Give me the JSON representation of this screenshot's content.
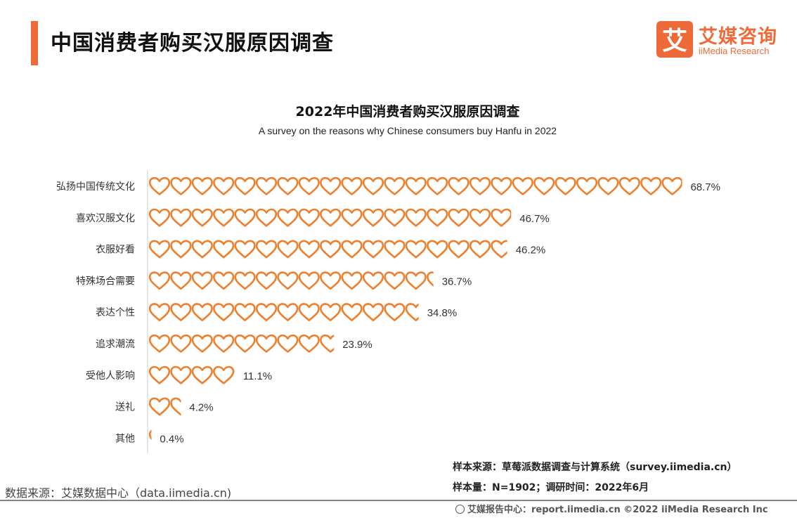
{
  "header": {
    "title": "中国消费者购买汉服原因调查",
    "accent_color": "#ee6a39"
  },
  "logo": {
    "mark_icon": "ai-character-logo",
    "mark_char": "艾",
    "name": "艾媒咨询",
    "sub": "iiMedia Research"
  },
  "chart_data": {
    "type": "bar",
    "style": "pictograph-hearts",
    "title": "2022年中国消费者购买汉服原因调查",
    "subtitle": "A survey on the reasons why Chinese consumers buy Hanfu in 2022",
    "categories": [
      "弘扬中国传统文化",
      "喜欢汉服文化",
      "衣服好看",
      "特殊场合需要",
      "表达个性",
      "追求潮流",
      "受他人影响",
      "送礼",
      "其他"
    ],
    "values": [
      68.7,
      46.7,
      46.2,
      36.7,
      34.8,
      23.9,
      11.1,
      4.2,
      0.4
    ],
    "value_labels": [
      "68.7%",
      "46.7%",
      "46.2%",
      "36.7%",
      "34.8%",
      "23.9%",
      "11.1%",
      "4.2%",
      "0.4%"
    ],
    "unit": "%",
    "icon": "heart-outline-icon",
    "color": "#ee7f2d",
    "grid": false,
    "legend": "none"
  },
  "notes": {
    "source": "样本来源：草莓派数据调查与计算系统（survey.iimedia.cn）",
    "sample": "样本量：N=1902；调研时间：2022年6月"
  },
  "data_source": "数据来源：艾媒数据中心（data.iimedia.cn)",
  "footer": {
    "text": "艾媒报告中心：report.iimedia.cn ©2022 iiMedia Research Inc",
    "icon": "globe-icon"
  }
}
